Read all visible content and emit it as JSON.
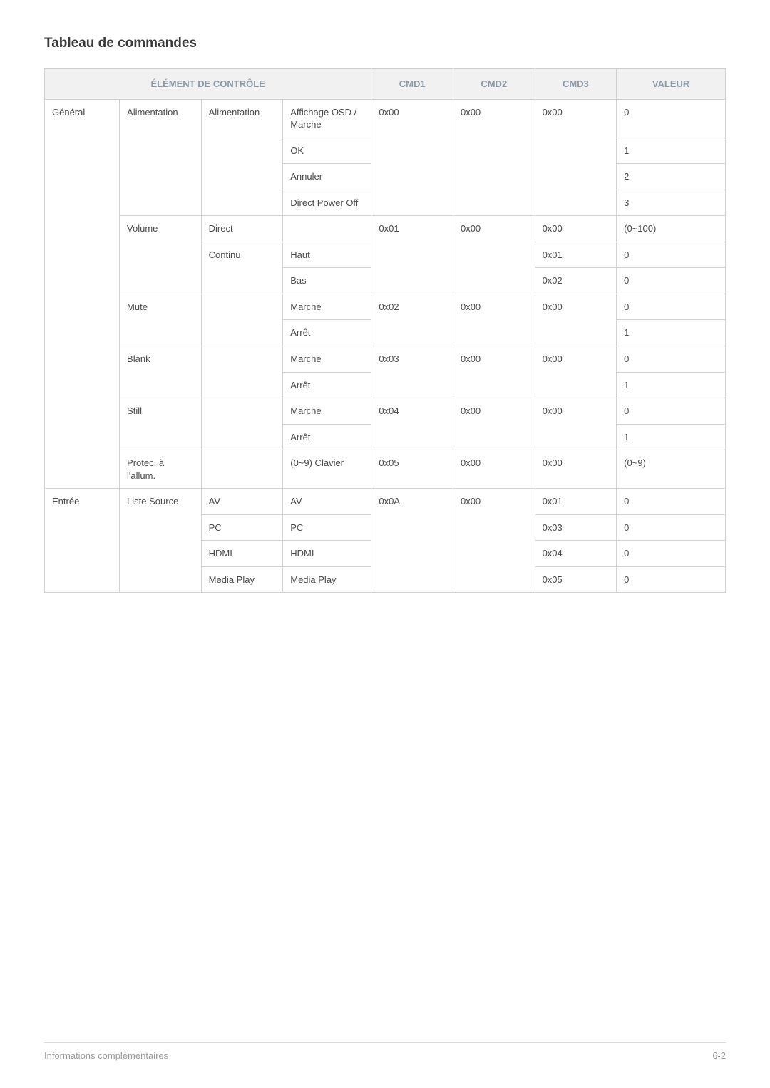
{
  "title": "Tableau de commandes",
  "headers": {
    "control": "ÉLÉMENT DE CONTRÔLE",
    "cmd1": "CMD1",
    "cmd2": "CMD2",
    "cmd3": "CMD3",
    "value": "VALEUR"
  },
  "footer": {
    "left": "Informations complémentaires",
    "right": "6-2"
  },
  "colors": {
    "header_bg": "#f1f1f1",
    "header_text": "#8a9aa8",
    "border": "#d0d0d0",
    "text": "#4a4a4a",
    "footer_text": "#9a9a9a"
  },
  "sections": [
    {
      "group": "Général",
      "items": [
        {
          "name": "Alimentation",
          "sub": "Alimentation",
          "cmd1": "0x00",
          "cmd2": "0x00",
          "cmd3": "0x00",
          "options": [
            {
              "label": "Affichage OSD / Marche",
              "value": "0"
            },
            {
              "label": "OK",
              "value": "1"
            },
            {
              "label": "Annuler",
              "value": "2"
            },
            {
              "label": "Direct Power Off",
              "value": "3"
            }
          ]
        },
        {
          "name": "Volume",
          "cmd1": "0x01",
          "cmd2": "0x00",
          "rows": [
            {
              "sub": "Direct",
              "label": "",
              "cmd3": "0x00",
              "value": "(0~100)"
            },
            {
              "sub": "Continu",
              "label": "Haut",
              "cmd3": "0x01",
              "value": "0"
            },
            {
              "sub": "",
              "label": "Bas",
              "cmd3": "0x02",
              "value": "0"
            }
          ]
        },
        {
          "name": "Mute",
          "cmd1": "0x02",
          "cmd2": "0x00",
          "cmd3": "0x00",
          "options": [
            {
              "label": "Marche",
              "value": "0"
            },
            {
              "label": "Arrêt",
              "value": "1"
            }
          ]
        },
        {
          "name": "Blank",
          "cmd1": "0x03",
          "cmd2": "0x00",
          "cmd3": "0x00",
          "options": [
            {
              "label": "Marche",
              "value": "0"
            },
            {
              "label": "Arrêt",
              "value": "1"
            }
          ]
        },
        {
          "name": "Still",
          "cmd1": "0x04",
          "cmd2": "0x00",
          "cmd3": "0x00",
          "options": [
            {
              "label": "Marche",
              "value": "0"
            },
            {
              "label": "Arrêt",
              "value": "1"
            }
          ]
        },
        {
          "name": "Protec. à l'allum.",
          "cmd1": "0x05",
          "cmd2": "0x00",
          "cmd3": "0x00",
          "options": [
            {
              "label": "(0~9) Clavier",
              "value": "(0~9)"
            }
          ]
        }
      ]
    },
    {
      "group": "Entrée",
      "items": [
        {
          "name": "Liste Source",
          "cmd1": "0x0A",
          "cmd2": "0x00",
          "rows": [
            {
              "sub": "AV",
              "label": "AV",
              "cmd3": "0x01",
              "value": "0"
            },
            {
              "sub": "PC",
              "label": "PC",
              "cmd3": "0x03",
              "value": "0"
            },
            {
              "sub": "HDMI",
              "label": "HDMI",
              "cmd3": "0x04",
              "value": "0"
            },
            {
              "sub": "Media Play",
              "label": "Media Play",
              "cmd3": "0x05",
              "value": "0"
            }
          ]
        }
      ]
    }
  ]
}
